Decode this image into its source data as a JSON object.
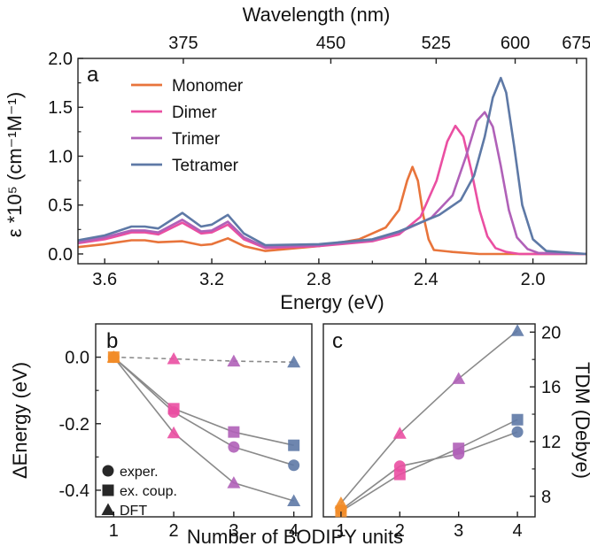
{
  "figure": {
    "panels": [
      "a",
      "b",
      "c"
    ]
  },
  "chart_data": [
    {
      "type": "line",
      "panel": "a",
      "xlabel": "Energy (eV)",
      "ylabel": "ε *10⁵ (cm⁻¹M⁻¹)",
      "top_xlabel": "Wavelength (nm)",
      "xlim": [
        3.7,
        1.8
      ],
      "x_reversed": true,
      "ylim": [
        -0.1,
        2.0
      ],
      "xticks": [
        "3.6",
        "3.2",
        "2.8",
        "2.4",
        "2.0"
      ],
      "yticks": [
        "0.0",
        "0.5",
        "1.0",
        "1.5",
        "2.0"
      ],
      "top_ticks": [
        "375",
        "450",
        "525",
        "600",
        "675"
      ],
      "legend": "top-left",
      "series": [
        {
          "name": "Monomer",
          "color": "#e8743b",
          "x": [
            3.7,
            3.6,
            3.5,
            3.45,
            3.4,
            3.31,
            3.24,
            3.2,
            3.14,
            3.08,
            3.0,
            2.8,
            2.65,
            2.6,
            2.55,
            2.5,
            2.47,
            2.45,
            2.43,
            2.41,
            2.39,
            2.37,
            2.3,
            2.2,
            2.0,
            1.8
          ],
          "y": [
            0.07,
            0.1,
            0.14,
            0.14,
            0.12,
            0.13,
            0.09,
            0.1,
            0.16,
            0.08,
            0.03,
            0.08,
            0.15,
            0.21,
            0.27,
            0.45,
            0.75,
            0.89,
            0.75,
            0.4,
            0.15,
            0.04,
            0.02,
            0.0,
            0.0,
            0.0
          ]
        },
        {
          "name": "Dimer",
          "color": "#ea4fa2",
          "x": [
            3.7,
            3.6,
            3.5,
            3.45,
            3.4,
            3.31,
            3.24,
            3.2,
            3.14,
            3.08,
            3.0,
            2.8,
            2.6,
            2.5,
            2.42,
            2.36,
            2.32,
            2.29,
            2.26,
            2.23,
            2.2,
            2.17,
            2.14,
            2.1,
            2.05,
            1.8
          ],
          "y": [
            0.11,
            0.15,
            0.22,
            0.22,
            0.2,
            0.32,
            0.21,
            0.22,
            0.3,
            0.15,
            0.06,
            0.08,
            0.13,
            0.2,
            0.38,
            0.75,
            1.15,
            1.31,
            1.2,
            0.85,
            0.45,
            0.18,
            0.06,
            0.02,
            0.0,
            0.0
          ]
        },
        {
          "name": "Trimer",
          "color": "#b061b8",
          "x": [
            3.7,
            3.6,
            3.5,
            3.45,
            3.4,
            3.31,
            3.24,
            3.2,
            3.14,
            3.08,
            3.0,
            2.8,
            2.6,
            2.5,
            2.38,
            2.3,
            2.25,
            2.21,
            2.18,
            2.15,
            2.12,
            2.09,
            2.06,
            2.02,
            1.98,
            1.8
          ],
          "y": [
            0.12,
            0.17,
            0.24,
            0.24,
            0.22,
            0.35,
            0.23,
            0.24,
            0.33,
            0.17,
            0.07,
            0.09,
            0.14,
            0.22,
            0.37,
            0.6,
            1.0,
            1.36,
            1.45,
            1.3,
            0.9,
            0.45,
            0.17,
            0.05,
            0.01,
            0.0
          ]
        },
        {
          "name": "Tetramer",
          "color": "#5e79a6",
          "x": [
            3.7,
            3.6,
            3.5,
            3.45,
            3.4,
            3.31,
            3.24,
            3.2,
            3.14,
            3.08,
            3.0,
            2.8,
            2.6,
            2.5,
            2.35,
            2.27,
            2.22,
            2.18,
            2.15,
            2.12,
            2.1,
            2.07,
            2.04,
            2.0,
            1.95,
            1.8
          ],
          "y": [
            0.14,
            0.19,
            0.28,
            0.28,
            0.26,
            0.42,
            0.28,
            0.3,
            0.4,
            0.21,
            0.09,
            0.1,
            0.15,
            0.23,
            0.4,
            0.55,
            0.8,
            1.2,
            1.6,
            1.8,
            1.65,
            1.1,
            0.5,
            0.15,
            0.03,
            0.0
          ]
        }
      ]
    },
    {
      "type": "scatter",
      "panel": "b",
      "xlabel": "Number of BODIPY units",
      "ylabel": "ΔEnergy (eV)",
      "xlim": [
        0.7,
        4.3
      ],
      "ylim": [
        -0.48,
        0.1
      ],
      "xticks": [
        "1",
        "2",
        "3",
        "4"
      ],
      "yticks": [
        "0.0",
        "-0.2",
        "-0.4"
      ],
      "point_colors": [
        "#f28c28",
        "#ea4fa2",
        "#b061b8",
        "#5e79a6"
      ],
      "marker_legend": [
        "exper.",
        "ex. coup.",
        "DFT"
      ],
      "series": [
        {
          "marker": "circle",
          "x": [
            1,
            2,
            3,
            4
          ],
          "y": [
            0.0,
            -0.165,
            -0.27,
            -0.325
          ]
        },
        {
          "marker": "square",
          "x": [
            1,
            2,
            3,
            4
          ],
          "y": [
            0.0,
            -0.155,
            -0.225,
            -0.265
          ]
        },
        {
          "marker": "triangle",
          "x": [
            1,
            2,
            3,
            4
          ],
          "y": [
            0.0,
            -0.228,
            -0.378,
            -0.432
          ]
        },
        {
          "marker": "triangle",
          "dashed": true,
          "x": [
            1,
            2,
            3,
            4
          ],
          "y": [
            0.0,
            -0.005,
            -0.012,
            -0.015
          ]
        }
      ]
    },
    {
      "type": "scatter",
      "panel": "c",
      "ylabel": "TDM (Debye)",
      "xlim": [
        0.7,
        4.3
      ],
      "ylim": [
        6.5,
        20.6
      ],
      "xticks": [
        "1",
        "2",
        "3",
        "4"
      ],
      "yticks": [
        "8",
        "12",
        "16",
        "20"
      ],
      "point_colors": [
        "#f28c28",
        "#ea4fa2",
        "#b061b8",
        "#5e79a6"
      ],
      "series": [
        {
          "marker": "circle",
          "x": [
            1,
            2,
            3,
            4
          ],
          "y": [
            7.0,
            10.2,
            11.1,
            12.7
          ]
        },
        {
          "marker": "square",
          "x": [
            1,
            2,
            3,
            4
          ],
          "y": [
            6.9,
            9.6,
            11.5,
            13.6
          ]
        },
        {
          "marker": "triangle",
          "x": [
            1,
            2,
            3,
            4
          ],
          "y": [
            7.5,
            12.6,
            16.6,
            20.1
          ]
        }
      ]
    }
  ]
}
